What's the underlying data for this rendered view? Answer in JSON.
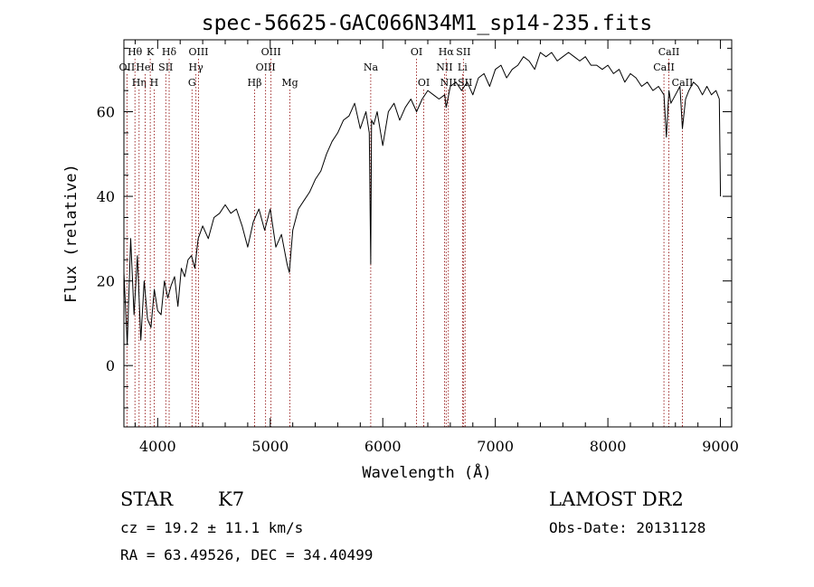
{
  "chart_data": {
    "type": "line",
    "title": "spec-56625-GAC066N34M1_sp14-235.fits",
    "xlabel": "Wavelength (Å)",
    "ylabel": "Flux (relative)",
    "xlim": [
      3700,
      9100
    ],
    "ylim": [
      -14.5,
      77
    ],
    "x_ticks": [
      4000,
      5000,
      6000,
      7000,
      8000,
      9000
    ],
    "x_tick_labels": [
      "4000",
      "5000",
      "6000",
      "7000",
      "8000",
      "9000"
    ],
    "y_ticks": [
      0,
      20,
      40,
      60
    ],
    "y_tick_labels": [
      "0",
      "20",
      "40",
      "60"
    ],
    "grid": false,
    "line_color": "#000000",
    "marker_color": "#8b0000",
    "series": [
      {
        "x": [
          3700,
          3730,
          3760,
          3790,
          3820,
          3850,
          3880,
          3910,
          3940,
          3970,
          4000,
          4030,
          4060,
          4090,
          4120,
          4150,
          4180,
          4210,
          4240,
          4270,
          4300,
          4330,
          4360,
          4400,
          4450,
          4500,
          4550,
          4600,
          4650,
          4700,
          4750,
          4800,
          4850,
          4900,
          4950,
          5000,
          5050,
          5100,
          5150,
          5170,
          5200,
          5250,
          5300,
          5350,
          5400,
          5450,
          5500,
          5550,
          5600,
          5650,
          5700,
          5750,
          5800,
          5850,
          5880,
          5893,
          5900,
          5920,
          5950,
          6000,
          6050,
          6100,
          6150,
          6200,
          6250,
          6300,
          6350,
          6400,
          6450,
          6500,
          6550,
          6563,
          6600,
          6650,
          6700,
          6750,
          6800,
          6850,
          6900,
          6950,
          7000,
          7050,
          7100,
          7150,
          7200,
          7250,
          7300,
          7350,
          7400,
          7450,
          7500,
          7550,
          7600,
          7650,
          7700,
          7750,
          7800,
          7850,
          7900,
          7950,
          8000,
          8050,
          8100,
          8150,
          8200,
          8250,
          8300,
          8350,
          8400,
          8450,
          8498,
          8520,
          8542,
          8560,
          8600,
          8640,
          8662,
          8690,
          8720,
          8760,
          8800,
          8840,
          8880,
          8920,
          8960,
          8990,
          9000
        ],
        "y": [
          22,
          5,
          30,
          12,
          26,
          6,
          20,
          11,
          9,
          18,
          13,
          12,
          20,
          16,
          19,
          21,
          14,
          23,
          21,
          25,
          26,
          23,
          30,
          33,
          30,
          35,
          36,
          38,
          36,
          37,
          33,
          28,
          34,
          37,
          32,
          37,
          28,
          31,
          24,
          22,
          32,
          37,
          39,
          41,
          44,
          46,
          50,
          53,
          55,
          58,
          59,
          62,
          56,
          60,
          55,
          24,
          58,
          57,
          60,
          52,
          60,
          62,
          58,
          61,
          63,
          60,
          63,
          65,
          64,
          63,
          64,
          61,
          66,
          67,
          65,
          67,
          64,
          68,
          69,
          66,
          70,
          71,
          68,
          70,
          71,
          73,
          72,
          70,
          74,
          73,
          74,
          72,
          73,
          74,
          73,
          72,
          73,
          71,
          71,
          70,
          71,
          69,
          70,
          67,
          69,
          68,
          66,
          67,
          65,
          66,
          64,
          54,
          65,
          62,
          64,
          66,
          56,
          63,
          65,
          67,
          66,
          64,
          66,
          64,
          65,
          63,
          40
        ]
      }
    ],
    "line_markers": [
      {
        "name": "O II",
        "label": "OII",
        "wavelength": 3727,
        "row": 2
      },
      {
        "name": "H theta",
        "label": "Hθ",
        "wavelength": 3798,
        "row": 1
      },
      {
        "name": "H eta",
        "label": "Hη",
        "wavelength": 3835,
        "row": 3
      },
      {
        "name": "He I",
        "label": "HeI",
        "wavelength": 3889,
        "row": 2
      },
      {
        "name": "K",
        "label": "K",
        "wavelength": 3934,
        "row": 1
      },
      {
        "name": "H",
        "label": "H",
        "wavelength": 3969,
        "row": 3
      },
      {
        "name": "S II",
        "label": "SII",
        "wavelength": 4072,
        "row": 2
      },
      {
        "name": "H delta",
        "label": "Hδ",
        "wavelength": 4102,
        "row": 1
      },
      {
        "name": "H gamma",
        "label": "Hγ",
        "wavelength": 4340,
        "row": 2
      },
      {
        "name": "G",
        "label": "G",
        "wavelength": 4305,
        "row": 3
      },
      {
        "name": "O III",
        "label": "OIII",
        "wavelength": 4363,
        "row": 1
      },
      {
        "name": "H beta",
        "label": "Hβ",
        "wavelength": 4861,
        "row": 3
      },
      {
        "name": "O III 4959",
        "label": "OIII",
        "wavelength": 4959,
        "row": 2
      },
      {
        "name": "O III 5007",
        "label": "OIII",
        "wavelength": 5007,
        "row": 1
      },
      {
        "name": "Mg",
        "label": "Mg",
        "wavelength": 5175,
        "row": 3
      },
      {
        "name": "Na",
        "label": "Na",
        "wavelength": 5893,
        "row": 2
      },
      {
        "name": "O I",
        "label": "OI",
        "wavelength": 6300,
        "row": 1
      },
      {
        "name": "O I 6364",
        "label": "OI",
        "wavelength": 6364,
        "row": 3
      },
      {
        "name": "N II",
        "label": "NII",
        "wavelength": 6548,
        "row": 2
      },
      {
        "name": "H alpha",
        "label": "Hα",
        "wavelength": 6563,
        "row": 1
      },
      {
        "name": "N II 6583",
        "label": "NII",
        "wavelength": 6583,
        "row": 3
      },
      {
        "name": "Li",
        "label": "Li",
        "wavelength": 6708,
        "row": 2
      },
      {
        "name": "S II 6716",
        "label": "SII",
        "wavelength": 6716,
        "row": 1
      },
      {
        "name": "S II 6731",
        "label": "SII",
        "wavelength": 6731,
        "row": 3
      },
      {
        "name": "Ca II 8498",
        "label": "CaII",
        "wavelength": 8498,
        "row": 2
      },
      {
        "name": "Ca II 8542",
        "label": "CaII",
        "wavelength": 8542,
        "row": 1
      },
      {
        "name": "Ca II 8662",
        "label": "CaII",
        "wavelength": 8662,
        "row": 3
      }
    ]
  },
  "info": {
    "object_class": "STAR",
    "subclass": "K7",
    "survey": "LAMOST DR2",
    "redshift_line": "cz =  19.2 ± 11.1 km/s",
    "obs_date_line": "Obs-Date: 20131128",
    "coords_line": "RA =  63.49526, DEC =  34.40499"
  }
}
